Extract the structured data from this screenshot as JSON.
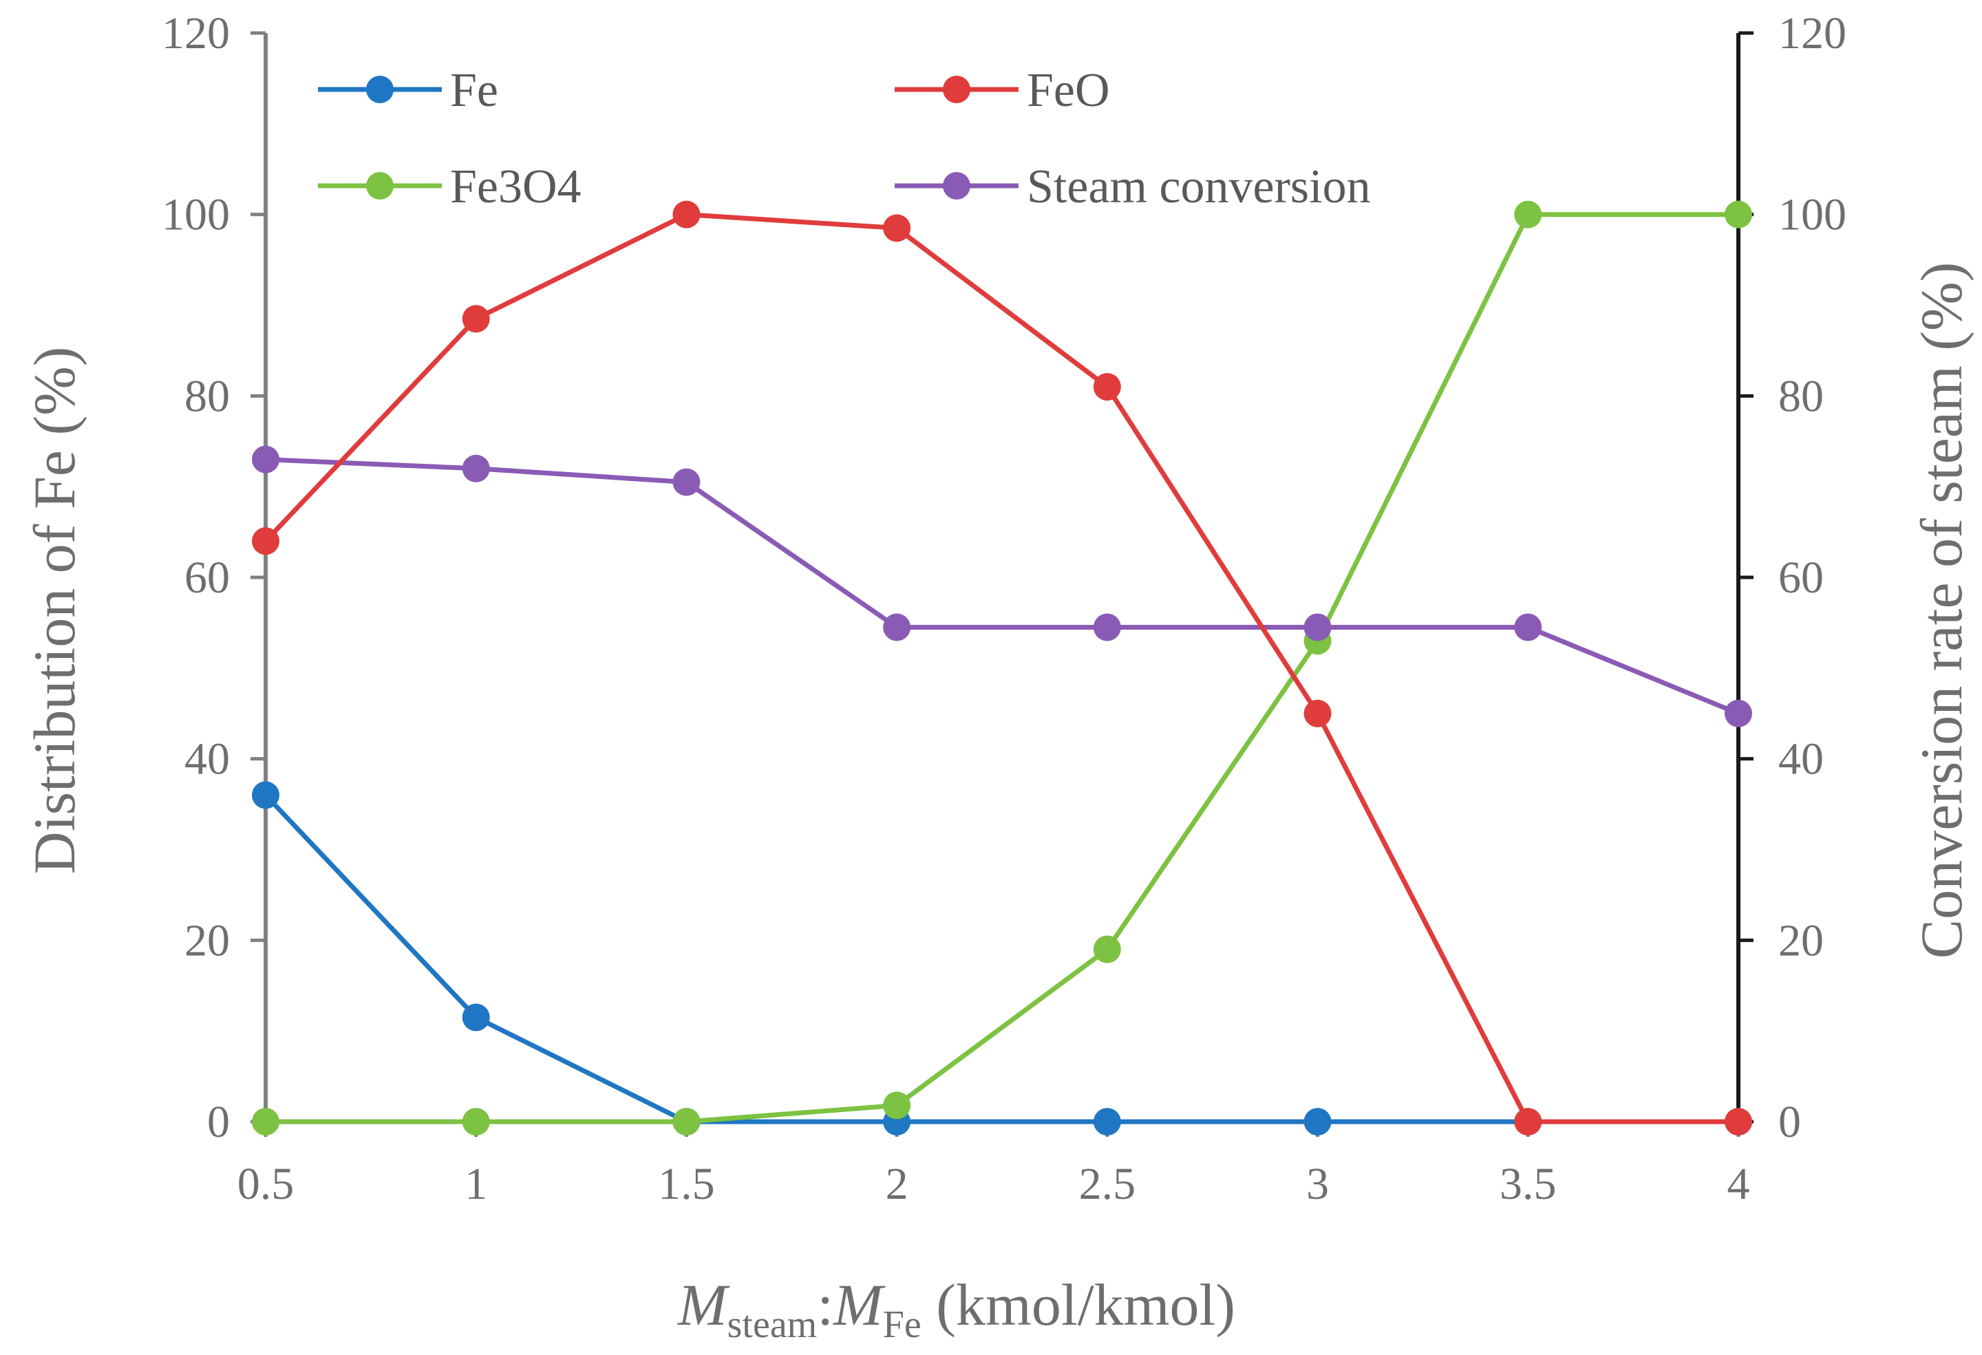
{
  "chart_data": {
    "type": "line",
    "title": "",
    "x": [
      0.5,
      1,
      1.5,
      2,
      2.5,
      3,
      3.5,
      4
    ],
    "x_tick_labels": [
      "0.5",
      "1",
      "1.5",
      "2",
      "2.5",
      "3",
      "3.5",
      "4"
    ],
    "xlim": [
      0.5,
      4
    ],
    "xlabel": {
      "var1": "M",
      "sub1": "steam",
      "sep": ":",
      "var2": "M",
      "sub2": "Fe",
      "units": " (kmol/kmol)"
    },
    "ylabel_left": "Distribution of Fe (%)",
    "ylabel_right": "Conversion rate of steam (%)",
    "ylim_left": [
      0,
      120
    ],
    "ylim_right": [
      0,
      120
    ],
    "y_ticks": [
      0,
      20,
      40,
      60,
      80,
      100,
      120
    ],
    "y_tick_labels": [
      "0",
      "20",
      "40",
      "60",
      "80",
      "100",
      "120"
    ],
    "grid": false,
    "legend_position": "top",
    "series": [
      {
        "name": "Fe",
        "axis": "left",
        "color": "#1f77c4",
        "values": [
          36,
          11.5,
          0,
          0,
          0,
          0,
          0,
          0
        ]
      },
      {
        "name": "FeO",
        "axis": "left",
        "color": "#e03c3c",
        "values": [
          64,
          88.5,
          100,
          98.5,
          81,
          45,
          0,
          0
        ]
      },
      {
        "name": "Fe3O4",
        "axis": "left",
        "color": "#7dc242",
        "values": [
          0,
          0,
          0,
          1.8,
          19,
          53,
          100,
          100
        ]
      },
      {
        "name": "Steam conversion",
        "axis": "right",
        "color": "#8a5bb5",
        "values": [
          73,
          72,
          70.5,
          54.5,
          54.5,
          54.5,
          54.5,
          45
        ]
      }
    ]
  }
}
